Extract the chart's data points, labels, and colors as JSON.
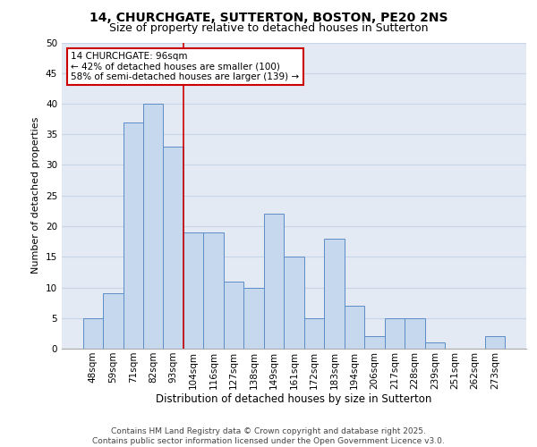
{
  "title1": "14, CHURCHGATE, SUTTERTON, BOSTON, PE20 2NS",
  "title2": "Size of property relative to detached houses in Sutterton",
  "xlabel": "Distribution of detached houses by size in Sutterton",
  "ylabel": "Number of detached properties",
  "categories": [
    "48sqm",
    "59sqm",
    "71sqm",
    "82sqm",
    "93sqm",
    "104sqm",
    "116sqm",
    "127sqm",
    "138sqm",
    "149sqm",
    "161sqm",
    "172sqm",
    "183sqm",
    "194sqm",
    "206sqm",
    "217sqm",
    "228sqm",
    "239sqm",
    "251sqm",
    "262sqm",
    "273sqm"
  ],
  "values": [
    5,
    9,
    37,
    40,
    33,
    19,
    19,
    11,
    10,
    22,
    15,
    5,
    18,
    7,
    2,
    5,
    5,
    1,
    0,
    0,
    2
  ],
  "bar_color": "#c5d8ee",
  "bar_edge_color": "#5b8dc8",
  "grid_color": "#c8d4e8",
  "background_color": "#e4eaf4",
  "vline_x": 4.5,
  "annotation_text": "14 CHURCHGATE: 96sqm\n← 42% of detached houses are smaller (100)\n58% of semi-detached houses are larger (139) →",
  "annotation_box_facecolor": "#ffffff",
  "annotation_box_edgecolor": "#cc0000",
  "vline_color": "#cc0000",
  "ylim": [
    0,
    50
  ],
  "yticks": [
    0,
    5,
    10,
    15,
    20,
    25,
    30,
    35,
    40,
    45,
    50
  ],
  "footer": "Contains HM Land Registry data © Crown copyright and database right 2025.\nContains public sector information licensed under the Open Government Licence v3.0.",
  "title1_fontsize": 10,
  "title2_fontsize": 9,
  "xlabel_fontsize": 8.5,
  "ylabel_fontsize": 8,
  "tick_fontsize": 7.5,
  "annotation_fontsize": 7.5,
  "footer_fontsize": 6.5
}
